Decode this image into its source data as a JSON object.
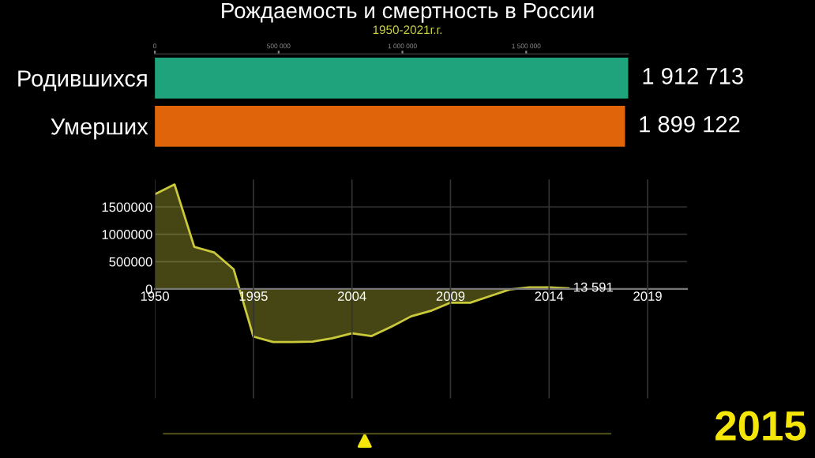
{
  "chart_data": [
    {
      "type": "bar",
      "orientation": "horizontal",
      "title": "Рождаемость и смертность в России",
      "subtitle": "1950-2021г.г.",
      "categories": [
        "Родившихся",
        "Умерших"
      ],
      "values": [
        1912713,
        1899122
      ],
      "colors": [
        "#1ea37c",
        "#e0650a"
      ],
      "value_labels": [
        "1 912 713",
        "1 899 122"
      ],
      "xlim": [
        0,
        1912713
      ],
      "xticks": [
        {
          "value": 0,
          "label": "0"
        },
        {
          "value": 500000,
          "label": "500 000"
        },
        {
          "value": 1000000,
          "label": "1 000 000"
        },
        {
          "value": 1500000,
          "label": "1 500 000"
        }
      ]
    },
    {
      "type": "area",
      "color": "#c9c93a",
      "grid": true,
      "categories": [
        "1950",
        null,
        null,
        null,
        null,
        "1995",
        null,
        null,
        null,
        null,
        "2004",
        null,
        null,
        null,
        null,
        "2009",
        null,
        null,
        null,
        null,
        "2014",
        null,
        null,
        null,
        null,
        "2019",
        null,
        null
      ],
      "values": [
        1730000,
        1910000,
        770000,
        670000,
        360000,
        -870000,
        -970000,
        -970000,
        -960000,
        -900000,
        -810000,
        -860000,
        -690000,
        -500000,
        -400000,
        -250000,
        -250000,
        -130000,
        -10000,
        30000,
        30000,
        13591,
        null,
        null,
        null,
        null,
        null,
        null
      ],
      "value_labels": [
        null,
        null,
        null,
        null,
        null,
        null,
        null,
        null,
        null,
        null,
        null,
        null,
        null,
        null,
        null,
        null,
        null,
        null,
        null,
        null,
        null,
        "13 591",
        null,
        null,
        null,
        null,
        null,
        null
      ],
      "ylim": [
        -2000000,
        2000000
      ],
      "yticks": [
        0,
        500000,
        1000000,
        1500000
      ],
      "annotations": [
        "2015"
      ]
    }
  ]
}
